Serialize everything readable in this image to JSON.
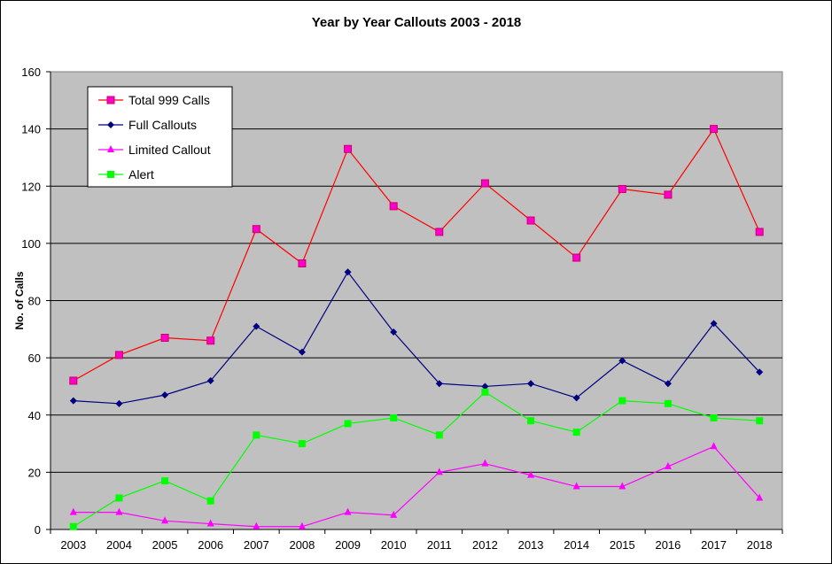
{
  "chart_data": {
    "type": "line",
    "title": "Year by Year Callouts 2003 - 2018",
    "xlabel": "",
    "ylabel": "No. of Calls",
    "ylim": [
      0,
      160
    ],
    "yticks": [
      0,
      20,
      40,
      60,
      80,
      100,
      120,
      140,
      160
    ],
    "grid": true,
    "legend_position": "top-left",
    "background_color": "#c0c0c0",
    "categories": [
      "2003",
      "2004",
      "2005",
      "2006",
      "2007",
      "2008",
      "2009",
      "2010",
      "2011",
      "2012",
      "2013",
      "2014",
      "2015",
      "2016",
      "2017",
      "2018"
    ],
    "series": [
      {
        "name": "Total 999 Calls",
        "color": "#ff0000",
        "marker_color": "#ff00cc",
        "marker": "square",
        "values": [
          52,
          61,
          67,
          66,
          105,
          93,
          133,
          113,
          104,
          121,
          108,
          95,
          119,
          117,
          140,
          104
        ]
      },
      {
        "name": "Full Callouts",
        "color": "#000080",
        "marker_color": "#000080",
        "marker": "diamond",
        "values": [
          45,
          44,
          47,
          52,
          71,
          62,
          90,
          69,
          51,
          50,
          51,
          46,
          59,
          51,
          72,
          55
        ]
      },
      {
        "name": "Limited Callout",
        "color": "#ff00ff",
        "marker_color": "#ff00ff",
        "marker": "triangle",
        "values": [
          6,
          6,
          3,
          2,
          1,
          1,
          6,
          5,
          20,
          23,
          19,
          15,
          15,
          22,
          29,
          11
        ]
      },
      {
        "name": "Alert",
        "color": "#00ff00",
        "marker_color": "#00ff00",
        "marker": "square",
        "values": [
          1,
          11,
          17,
          10,
          33,
          30,
          37,
          39,
          33,
          48,
          38,
          34,
          45,
          44,
          39,
          38
        ]
      }
    ]
  }
}
